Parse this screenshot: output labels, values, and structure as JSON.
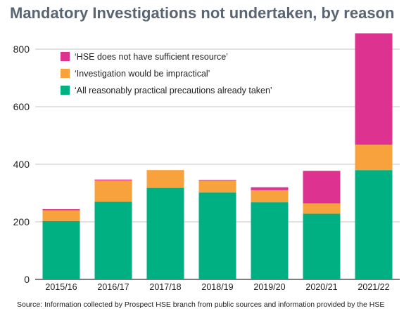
{
  "chart_data": {
    "type": "bar",
    "stacked": true,
    "title": "Mandatory Investigations not undertaken, by reason",
    "source": "Source: Information collected by Prospect HSE branch from public sources and information provided by the HSE",
    "categories": [
      "2015/16",
      "2016/17",
      "2017/18",
      "2018/19",
      "2019/20",
      "2020/21",
      "2021/22"
    ],
    "series": [
      {
        "name": "‘All reasonably practical precautions already taken’",
        "color": "#00b083",
        "values": [
          203,
          270,
          318,
          302,
          268,
          228,
          380
        ]
      },
      {
        "name": "‘Investigation would be impractical’",
        "color": "#f8a23d",
        "values": [
          37,
          74,
          62,
          40,
          42,
          36,
          88
        ]
      },
      {
        "name": "‘HSE does not have sufficient resource’",
        "color": "#de3291",
        "values": [
          4,
          3,
          0,
          3,
          10,
          113,
          387
        ]
      }
    ],
    "legend_order": [
      2,
      1,
      0
    ],
    "ylim": [
      0,
      900
    ],
    "yticks": [
      0,
      200,
      400,
      600,
      800
    ],
    "grid": true,
    "legend_position": "top-left"
  }
}
